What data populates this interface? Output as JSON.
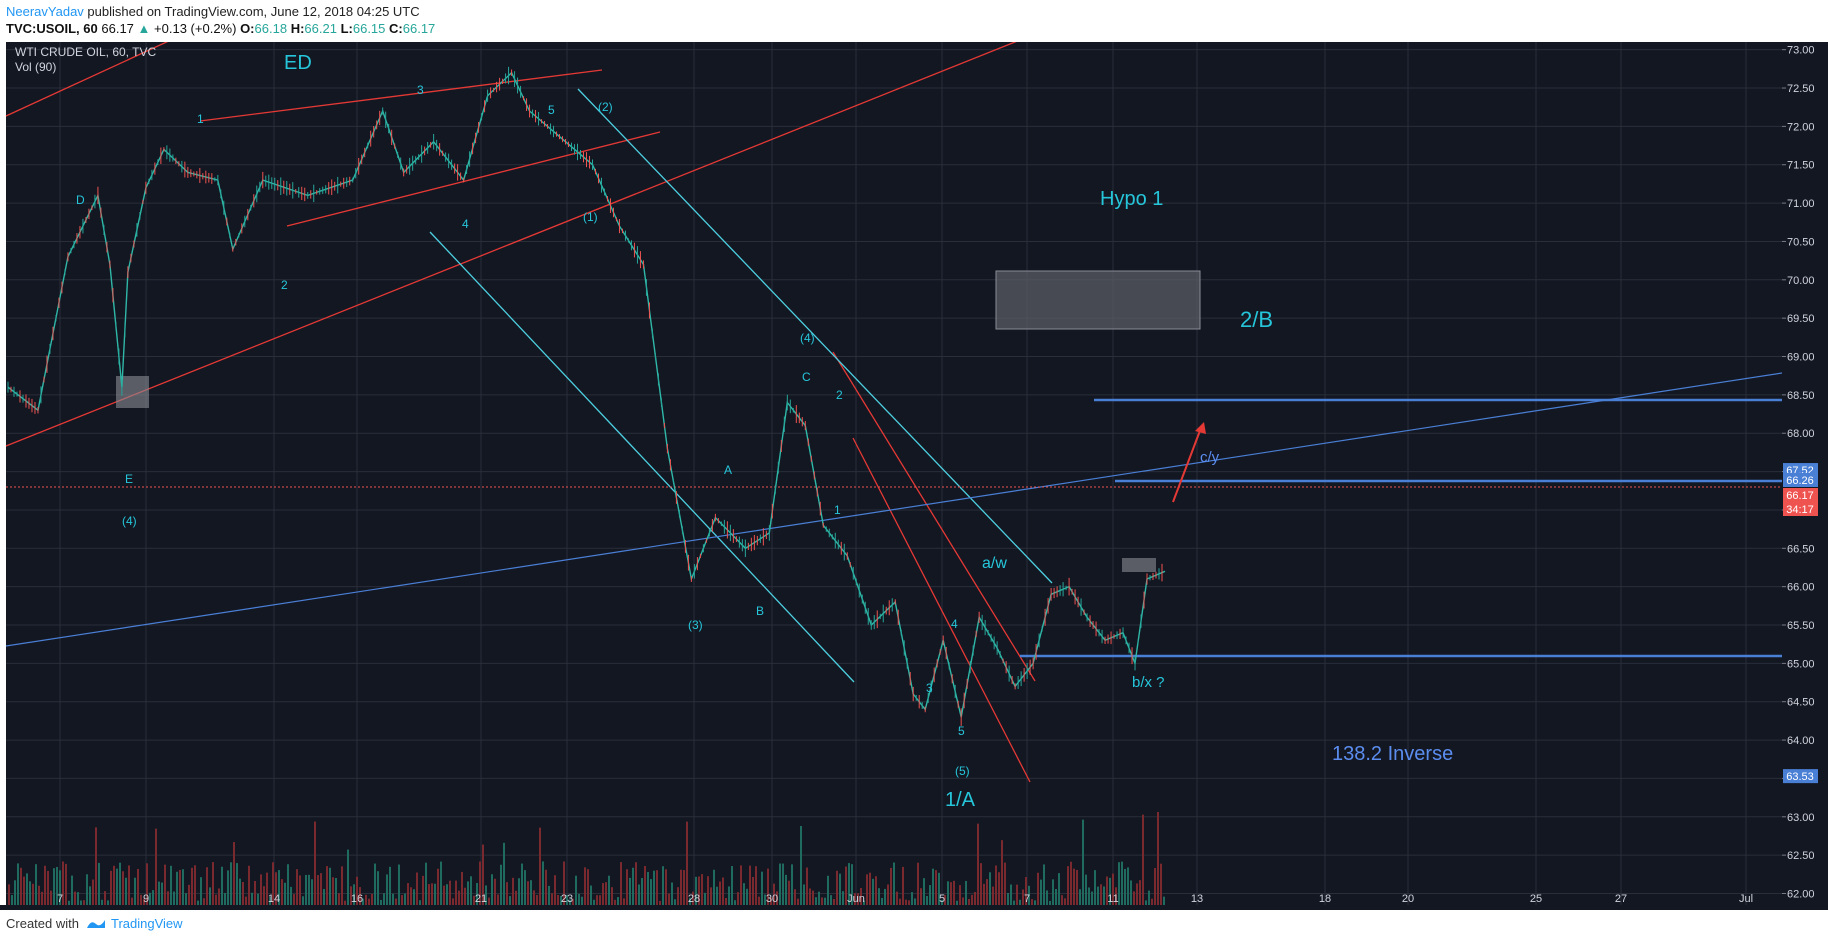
{
  "header": {
    "author": "NeeravYadav",
    "published_text": " published on TradingView.com, June 12, 2018 04:25 UTC"
  },
  "symbol_line": {
    "symbol": "TVC:USOIL, 60",
    "last": "66.17",
    "change_arrow": "▲",
    "change": "+0.13 (+0.2%)",
    "o_label": "O:",
    "o": "66.18",
    "h_label": "H:",
    "h": "66.21",
    "l_label": "L:",
    "l": "66.15",
    "c_label": "C:",
    "c": "66.17"
  },
  "legend": {
    "title": "WTI CRUDE OIL, 60, TVC",
    "indicator": "Vol (90)"
  },
  "footer": {
    "created_with": "Created with",
    "brand": "TradingView"
  },
  "colors": {
    "background": "#131722",
    "grid": "#2a2e39",
    "cyan": "#4dd0e1",
    "label_cyan": "#26c6da",
    "red": "#e53935",
    "blue": "#4a7fd6",
    "candle_up": "#26a69a",
    "candle_down": "#ef5350",
    "price_tag_red": "#ef5350"
  },
  "chart_data": {
    "type": "candlestick",
    "title": "WTI CRUDE OIL, 60, TVC",
    "y_axis": {
      "ticks": [
        "73.00",
        "72.50",
        "72.00",
        "71.50",
        "71.00",
        "70.50",
        "70.00",
        "69.50",
        "69.00",
        "68.50",
        "68.00",
        "67.50",
        "67.00",
        "66.50",
        "66.00",
        "65.50",
        "65.00",
        "64.50",
        "64.00",
        "63.50",
        "63.00",
        "62.50",
        "62.00"
      ],
      "range": [
        61.85,
        73.1
      ]
    },
    "x_axis": {
      "ticks": [
        "7",
        "9",
        "14",
        "16",
        "21",
        "23",
        "28",
        "30",
        "Jun",
        "5",
        "7",
        "11",
        "13",
        "18",
        "20",
        "25",
        "27",
        "Jul"
      ]
    },
    "price_tags": [
      {
        "label": "67.52",
        "value": 67.52,
        "color": "#4a7fd6"
      },
      {
        "label": "66.26",
        "value": 66.26,
        "color": "#4a7fd6"
      },
      {
        "label": "66.17",
        "value": 66.17,
        "color": "#ef5350"
      },
      {
        "label": "34:17",
        "value": 65.9,
        "color": "#ef5350"
      },
      {
        "label": "63.53",
        "value": 63.53,
        "color": "#4a7fd6"
      }
    ],
    "price_path": [
      [
        0,
        68.6
      ],
      [
        1,
        68.3
      ],
      [
        2,
        70.3
      ],
      [
        3,
        71.1
      ],
      [
        3.4,
        70.2
      ],
      [
        3.8,
        68.6
      ],
      [
        4.0,
        70.1
      ],
      [
        4.6,
        71.2
      ],
      [
        5.2,
        71.7
      ],
      [
        6,
        71.4
      ],
      [
        7,
        71.3
      ],
      [
        7.5,
        70.4
      ],
      [
        8.5,
        71.3
      ],
      [
        10,
        71.1
      ],
      [
        11.5,
        71.3
      ],
      [
        12.5,
        72.2
      ],
      [
        13.2,
        71.4
      ],
      [
        14.2,
        71.8
      ],
      [
        15.2,
        71.3
      ],
      [
        16,
        72.4
      ],
      [
        16.8,
        72.7
      ],
      [
        17.4,
        72.2
      ],
      [
        18.6,
        71.8
      ],
      [
        19.5,
        71.5
      ],
      [
        20.4,
        70.7
      ],
      [
        21.2,
        70.2
      ],
      [
        22,
        67.8
      ],
      [
        22.8,
        66.1
      ],
      [
        23.6,
        66.9
      ],
      [
        24.6,
        66.5
      ],
      [
        25.4,
        66.7
      ],
      [
        26,
        68.4
      ],
      [
        26.6,
        68.1
      ],
      [
        27.2,
        66.8
      ],
      [
        28,
        66.4
      ],
      [
        28.8,
        65.5
      ],
      [
        29.6,
        65.8
      ],
      [
        30.2,
        64.6
      ],
      [
        30.6,
        64.4
      ],
      [
        31.2,
        65.3
      ],
      [
        31.8,
        64.3
      ],
      [
        32.4,
        65.6
      ],
      [
        33,
        65.2
      ],
      [
        33.6,
        64.7
      ],
      [
        34.2,
        65.0
      ],
      [
        34.8,
        65.9
      ],
      [
        35.4,
        66.0
      ],
      [
        36,
        65.6
      ],
      [
        36.6,
        65.3
      ],
      [
        37.2,
        65.4
      ],
      [
        37.6,
        65.0
      ],
      [
        38,
        66.1
      ],
      [
        38.6,
        66.2
      ]
    ],
    "price_path_x_range": [
      0,
      38.6
    ],
    "annotations": [
      {
        "text": "ED",
        "value": 72.8
      },
      {
        "text": "Hypo 1",
        "value": 70.6
      },
      {
        "text": "2/B",
        "value": 68.7
      },
      {
        "text": "c/y",
        "value": 67.6
      },
      {
        "text": "a/w",
        "value": 66.1
      },
      {
        "text": "b/x ?",
        "value": 64.6
      },
      {
        "text": "138.2 Inverse",
        "value": 63.6
      },
      {
        "text": "1/A",
        "value": 63.0
      }
    ],
    "wave_labels": [
      {
        "text": "D"
      },
      {
        "text": "E"
      },
      {
        "text": "(4)"
      },
      {
        "text": "1"
      },
      {
        "text": "2"
      },
      {
        "text": "3"
      },
      {
        "text": "4"
      },
      {
        "text": "5"
      },
      {
        "text": "(1)"
      },
      {
        "text": "(2)"
      },
      {
        "text": "(3)"
      },
      {
        "text": "(4)"
      },
      {
        "text": "(5)"
      },
      {
        "text": "A"
      },
      {
        "text": "B"
      },
      {
        "text": "C"
      },
      {
        "text": "1"
      },
      {
        "text": "2"
      },
      {
        "text": "3"
      },
      {
        "text": "4"
      },
      {
        "text": "5"
      }
    ]
  }
}
